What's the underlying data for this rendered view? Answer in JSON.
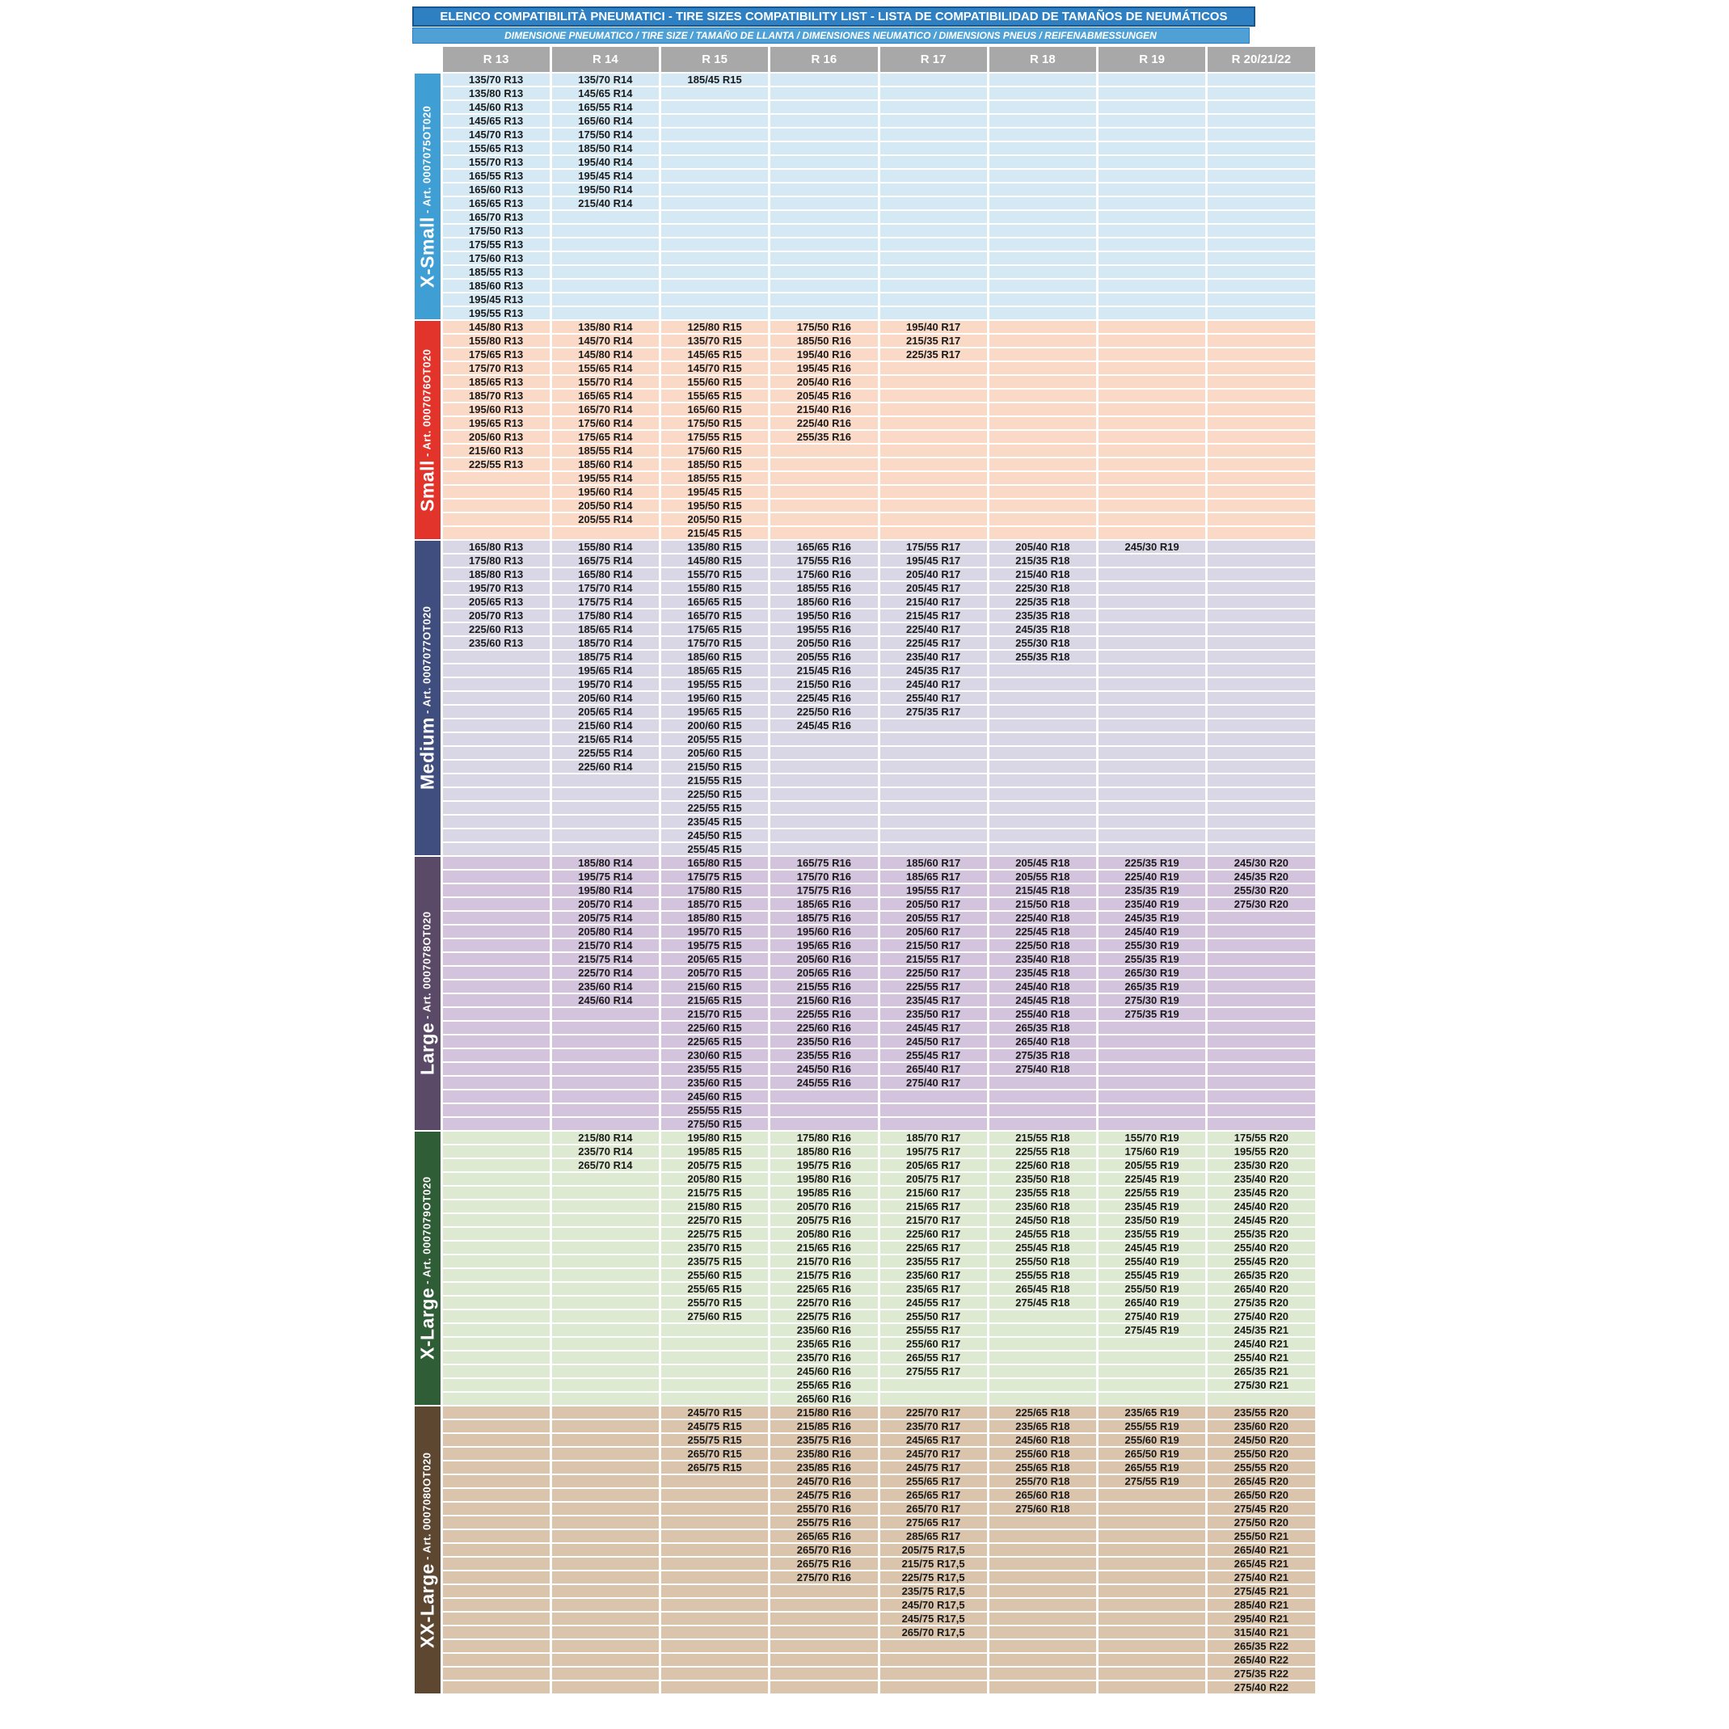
{
  "header": {
    "title": "ELENCO COMPATIBILITÀ PNEUMATICI - TIRE SIZES COMPATIBILITY LIST - LISTA DE COMPATIBILIDAD DE TAMAÑOS DE NEUMÁTICOS",
    "subtitle": "DIMENSIONE PNEUMATICO / TIRE SIZE  /  TAMAÑO DE LLANTA / DIMENSIONES NEUMATICO  /  DIMENSIONS PNEUS  /  REIFENABMESSUNGEN",
    "columns": [
      "R 13",
      "R 14",
      "R 15",
      "R 16",
      "R 17",
      "R 18",
      "R 19",
      "R 20/21/22"
    ]
  },
  "column_keys": [
    "r13",
    "r14",
    "r15",
    "r16",
    "r17",
    "r18",
    "r19",
    "r20"
  ],
  "label_separator": " - ",
  "colors": {
    "title_bg": "#2E80C3",
    "title_border": "#17568F",
    "subtitle_bg": "#4FA0D4",
    "header_bg": "#A8A8A8",
    "cell_text": "#1A1A1A"
  },
  "sections": [
    {
      "name": "X-Small",
      "article": "Art. 0007075OT020",
      "label_color": "#3F9FD5",
      "cell_color": "#D5E9F5",
      "rows": 18,
      "columns": {
        "r13": [
          "135/70 R13",
          "135/80 R13",
          "145/60 R13",
          "145/65 R13",
          "145/70 R13",
          "155/65 R13",
          "155/70 R13",
          "165/55 R13",
          "165/60 R13",
          "165/65 R13",
          "165/70 R13",
          "175/50 R13",
          "175/55 R13",
          "175/60 R13",
          "185/55 R13",
          "185/60 R13",
          "195/45 R13",
          "195/55 R13"
        ],
        "r14": [
          "135/70 R14",
          "145/65 R14",
          "165/55 R14",
          "165/60 R14",
          "175/50 R14",
          "185/50 R14",
          "195/40 R14",
          "195/45 R14",
          "195/50 R14",
          "215/40 R14"
        ],
        "r15": [
          "185/45 R15"
        ],
        "r16": [],
        "r17": [],
        "r18": [],
        "r19": [],
        "r20": []
      }
    },
    {
      "name": "Small",
      "article": "Art. 0007076OT020",
      "label_color": "#E2342A",
      "cell_color": "#FAD9C6",
      "rows": 16,
      "columns": {
        "r13": [
          "145/80 R13",
          "155/80 R13",
          "175/65 R13",
          "175/70 R13",
          "185/65 R13",
          "185/70 R13",
          "195/60 R13",
          "195/65 R13",
          "205/60 R13",
          "215/60 R13",
          "225/55 R13"
        ],
        "r14": [
          "135/80 R14",
          "145/70 R14",
          "145/80 R14",
          "155/65 R14",
          "155/70 R14",
          "165/65 R14",
          "165/70 R14",
          "175/60 R14",
          "175/65 R14",
          "185/55 R14",
          "185/60 R14",
          "195/55 R14",
          "195/60 R14",
          "205/50 R14",
          "205/55 R14"
        ],
        "r15": [
          "125/80 R15",
          "135/70 R15",
          "145/65 R15",
          "145/70 R15",
          "155/60 R15",
          "155/65 R15",
          "165/60 R15",
          "175/50 R15",
          "175/55 R15",
          "175/60 R15",
          "185/50 R15",
          "185/55 R15",
          "195/45 R15",
          "195/50 R15",
          "205/50 R15",
          "215/45 R15"
        ],
        "r16": [
          "175/50 R16",
          "185/50 R16",
          "195/40 R16",
          "195/45 R16",
          "205/40 R16",
          "205/45 R16",
          "215/40 R16",
          "225/40 R16",
          "255/35 R16"
        ],
        "r17": [
          "195/40 R17",
          "215/35 R17",
          "225/35 R17"
        ],
        "r18": [],
        "r19": [],
        "r20": []
      }
    },
    {
      "name": "Medium",
      "article": "Art. 0007077OT020",
      "label_color": "#3F4E7F",
      "cell_color": "#D9D6E5",
      "rows": 23,
      "columns": {
        "r13": [
          "165/80 R13",
          "175/80 R13",
          "185/80 R13",
          "195/70 R13",
          "205/65 R13",
          "205/70 R13",
          "225/60 R13",
          "235/60 R13"
        ],
        "r14": [
          "155/80 R14",
          "165/75 R14",
          "165/80 R14",
          "175/70 R14",
          "175/75 R14",
          "175/80 R14",
          "185/65 R14",
          "185/70 R14",
          "185/75 R14",
          "195/65 R14",
          "195/70 R14",
          "205/60 R14",
          "205/65 R14",
          "215/60 R14",
          "215/65 R14",
          "225/55 R14",
          "225/60 R14"
        ],
        "r15": [
          "135/80 R15",
          "145/80 R15",
          "155/70 R15",
          "155/80 R15",
          "165/65 R15",
          "165/70 R15",
          "175/65 R15",
          "175/70 R15",
          "185/60 R15",
          "185/65 R15",
          "195/55 R15",
          "195/60 R15",
          "195/65 R15",
          "200/60 R15",
          "205/55 R15",
          "205/60 R15",
          "215/50 R15",
          "215/55 R15",
          "225/50 R15",
          "225/55 R15",
          "235/45 R15",
          "245/50 R15",
          "255/45 R15"
        ],
        "r16": [
          "165/65 R16",
          "175/55 R16",
          "175/60 R16",
          "185/55 R16",
          "185/60 R16",
          "195/50 R16",
          "195/55 R16",
          "205/50 R16",
          "205/55 R16",
          "215/45 R16",
          "215/50 R16",
          "225/45 R16",
          "225/50 R16",
          "245/45 R16"
        ],
        "r17": [
          "175/55 R17",
          "195/45 R17",
          "205/40 R17",
          "205/45 R17",
          "215/40 R17",
          "215/45 R17",
          "225/40 R17",
          "225/45 R17",
          "235/40 R17",
          "245/35 R17",
          "245/40 R17",
          "255/40 R17",
          "275/35 R17"
        ],
        "r18": [
          "205/40 R18",
          "215/35 R18",
          "215/40 R18",
          "225/30 R18",
          "225/35 R18",
          "235/35 R18",
          "245/35 R18",
          "255/30 R18",
          "255/35 R18"
        ],
        "r19": [
          "245/30 R19"
        ],
        "r20": []
      }
    },
    {
      "name": "Large",
      "article": "Art. 0007078OT020",
      "label_color": "#5B4968",
      "cell_color": "#D3C3DC",
      "rows": 20,
      "columns": {
        "r13": [],
        "r14": [
          "185/80 R14",
          "195/75 R14",
          "195/80 R14",
          "205/70 R14",
          "205/75 R14",
          "205/80 R14",
          "215/70 R14",
          "215/75 R14",
          "225/70 R14",
          "235/60 R14",
          "245/60 R14"
        ],
        "r15": [
          "165/80 R15",
          "175/75 R15",
          "175/80 R15",
          "185/70 R15",
          "185/80 R15",
          "195/70 R15",
          "195/75 R15",
          "205/65 R15",
          "205/70 R15",
          "215/60 R15",
          "215/65 R15",
          "215/70 R15",
          "225/60 R15",
          "225/65 R15",
          "230/60 R15",
          "235/55 R15",
          "235/60 R15",
          "245/60 R15",
          "255/55 R15",
          "275/50 R15"
        ],
        "r16": [
          "165/75 R16",
          "175/70 R16",
          "175/75 R16",
          "185/65 R16",
          "185/75 R16",
          "195/60 R16",
          "195/65 R16",
          "205/60 R16",
          "205/65 R16",
          "215/55 R16",
          "215/60 R16",
          "225/55 R16",
          "225/60 R16",
          "235/50 R16",
          "235/55 R16",
          "245/50 R16",
          "245/55 R16"
        ],
        "r17": [
          "185/60 R17",
          "185/65 R17",
          "195/55 R17",
          "205/50 R17",
          "205/55 R17",
          "205/60 R17",
          "215/50 R17",
          "215/55 R17",
          "225/50 R17",
          "225/55 R17",
          "235/45 R17",
          "235/50 R17",
          "245/45 R17",
          "245/50 R17",
          "255/45 R17",
          "265/40 R17",
          "275/40 R17"
        ],
        "r18": [
          "205/45 R18",
          "205/55 R18",
          "215/45 R18",
          "215/50 R18",
          "225/40 R18",
          "225/45 R18",
          "225/50 R18",
          "235/40 R18",
          "235/45 R18",
          "245/40 R18",
          "245/45 R18",
          "255/40 R18",
          "265/35 R18",
          "265/40 R18",
          "275/35 R18",
          "275/40 R18"
        ],
        "r19": [
          "225/35 R19",
          "225/40 R19",
          "235/35 R19",
          "235/40 R19",
          "245/35 R19",
          "245/40 R19",
          "255/30 R19",
          "255/35 R19",
          "265/30 R19",
          "265/35 R19",
          "275/30 R19",
          "275/35 R19"
        ],
        "r20": [
          "245/30 R20",
          "245/35 R20",
          "255/30 R20",
          "275/30 R20"
        ]
      }
    },
    {
      "name": "X-Large",
      "article": "Art. 0007079OT020",
      "label_color": "#2F5D36",
      "cell_color": "#DEE9D2",
      "rows": 20,
      "columns": {
        "r13": [],
        "r14": [
          "215/80 R14",
          "235/70 R14",
          "265/70 R14"
        ],
        "r15": [
          "195/80 R15",
          "195/85 R15",
          "205/75 R15",
          "205/80 R15",
          "215/75 R15",
          "215/80 R15",
          "225/70 R15",
          "225/75 R15",
          "235/70 R15",
          "235/75 R15",
          "255/60 R15",
          "255/65 R15",
          "255/70 R15",
          "275/60 R15"
        ],
        "r16": [
          "175/80 R16",
          "185/80 R16",
          "195/75 R16",
          "195/80 R16",
          "195/85 R16",
          "205/70 R16",
          "205/75 R16",
          "205/80 R16",
          "215/65 R16",
          "215/70 R16",
          "215/75 R16",
          "225/65 R16",
          "225/70 R16",
          "225/75 R16",
          "235/60 R16",
          "235/65 R16",
          "235/70 R16",
          "245/60 R16",
          "255/65 R16",
          "265/60 R16"
        ],
        "r17": [
          "185/70 R17",
          "195/75 R17",
          "205/65 R17",
          "205/75 R17",
          "215/60 R17",
          "215/65 R17",
          "215/70 R17",
          "225/60 R17",
          "225/65 R17",
          "235/55 R17",
          "235/60 R17",
          "235/65 R17",
          "245/55 R17",
          "255/50 R17",
          "255/55 R17",
          "255/60 R17",
          "265/55 R17",
          "275/55 R17"
        ],
        "r18": [
          "215/55 R18",
          "225/55 R18",
          "225/60 R18",
          "235/50 R18",
          "235/55 R18",
          "235/60 R18",
          "245/50 R18",
          "245/55 R18",
          "255/45 R18",
          "255/50 R18",
          "255/55 R18",
          "265/45 R18",
          "275/45 R18"
        ],
        "r19": [
          "155/70 R19",
          "175/60 R19",
          "205/55 R19",
          "225/45 R19",
          "225/55 R19",
          "235/45 R19",
          "235/50 R19",
          "235/55 R19",
          "245/45 R19",
          "255/40 R19",
          "255/45 R19",
          "255/50 R19",
          "265/40 R19",
          "275/40 R19",
          "275/45 R19"
        ],
        "r20": [
          "175/55 R20",
          "195/55 R20",
          "235/30 R20",
          "235/40 R20",
          "235/45 R20",
          "245/40 R20",
          "245/45 R20",
          "255/35 R20",
          "255/40 R20",
          "255/45 R20",
          "265/35 R20",
          "265/40 R20",
          "275/35 R20",
          "275/40 R20",
          "245/35 R21",
          "245/40 R21",
          "255/40 R21",
          "265/35 R21",
          "275/30 R21"
        ]
      }
    },
    {
      "name": "XX-Large",
      "article": "Art. 0007080OT020",
      "label_color": "#5D4731",
      "cell_color": "#DAC4AB",
      "rows": 21,
      "columns": {
        "r13": [],
        "r14": [],
        "r15": [
          "245/70 R15",
          "245/75 R15",
          "255/75 R15",
          "265/70 R15",
          "265/75 R15"
        ],
        "r16": [
          "215/80 R16",
          "215/85 R16",
          "235/75 R16",
          "235/80 R16",
          "235/85 R16",
          "245/70 R16",
          "245/75 R16",
          "255/70 R16",
          "255/75 R16",
          "265/65 R16",
          "265/70 R16",
          "265/75 R16",
          "275/70 R16"
        ],
        "r17": [
          "225/70 R17",
          "235/70 R17",
          "245/65 R17",
          "245/70 R17",
          "245/75 R17",
          "255/65 R17",
          "265/65 R17",
          "265/70 R17",
          "275/65 R17",
          "285/65 R17",
          "205/75 R17,5",
          "215/75 R17,5",
          "225/75 R17,5",
          "235/75 R17,5",
          "245/70 R17,5",
          "245/75 R17,5",
          "265/70 R17,5"
        ],
        "r18": [
          "225/65 R18",
          "235/65 R18",
          "245/60 R18",
          "255/60 R18",
          "255/65 R18",
          "255/70 R18",
          "265/60 R18",
          "275/60 R18"
        ],
        "r19": [
          "235/65 R19",
          "255/55 R19",
          "255/60 R19",
          "265/50 R19",
          "265/55 R19",
          "275/55 R19"
        ],
        "r20": [
          "235/55 R20",
          "235/60 R20",
          "245/50 R20",
          "255/50 R20",
          "255/55 R20",
          "265/45 R20",
          "265/50 R20",
          "275/45 R20",
          "275/50 R20",
          "255/50 R21",
          "265/40 R21",
          "265/45 R21",
          "275/40 R21",
          "275/45 R21",
          "285/40 R21",
          "295/40 R21",
          "315/40 R21",
          "265/35 R22",
          "265/40 R22",
          "275/35 R22",
          "275/40 R22"
        ]
      }
    }
  ]
}
